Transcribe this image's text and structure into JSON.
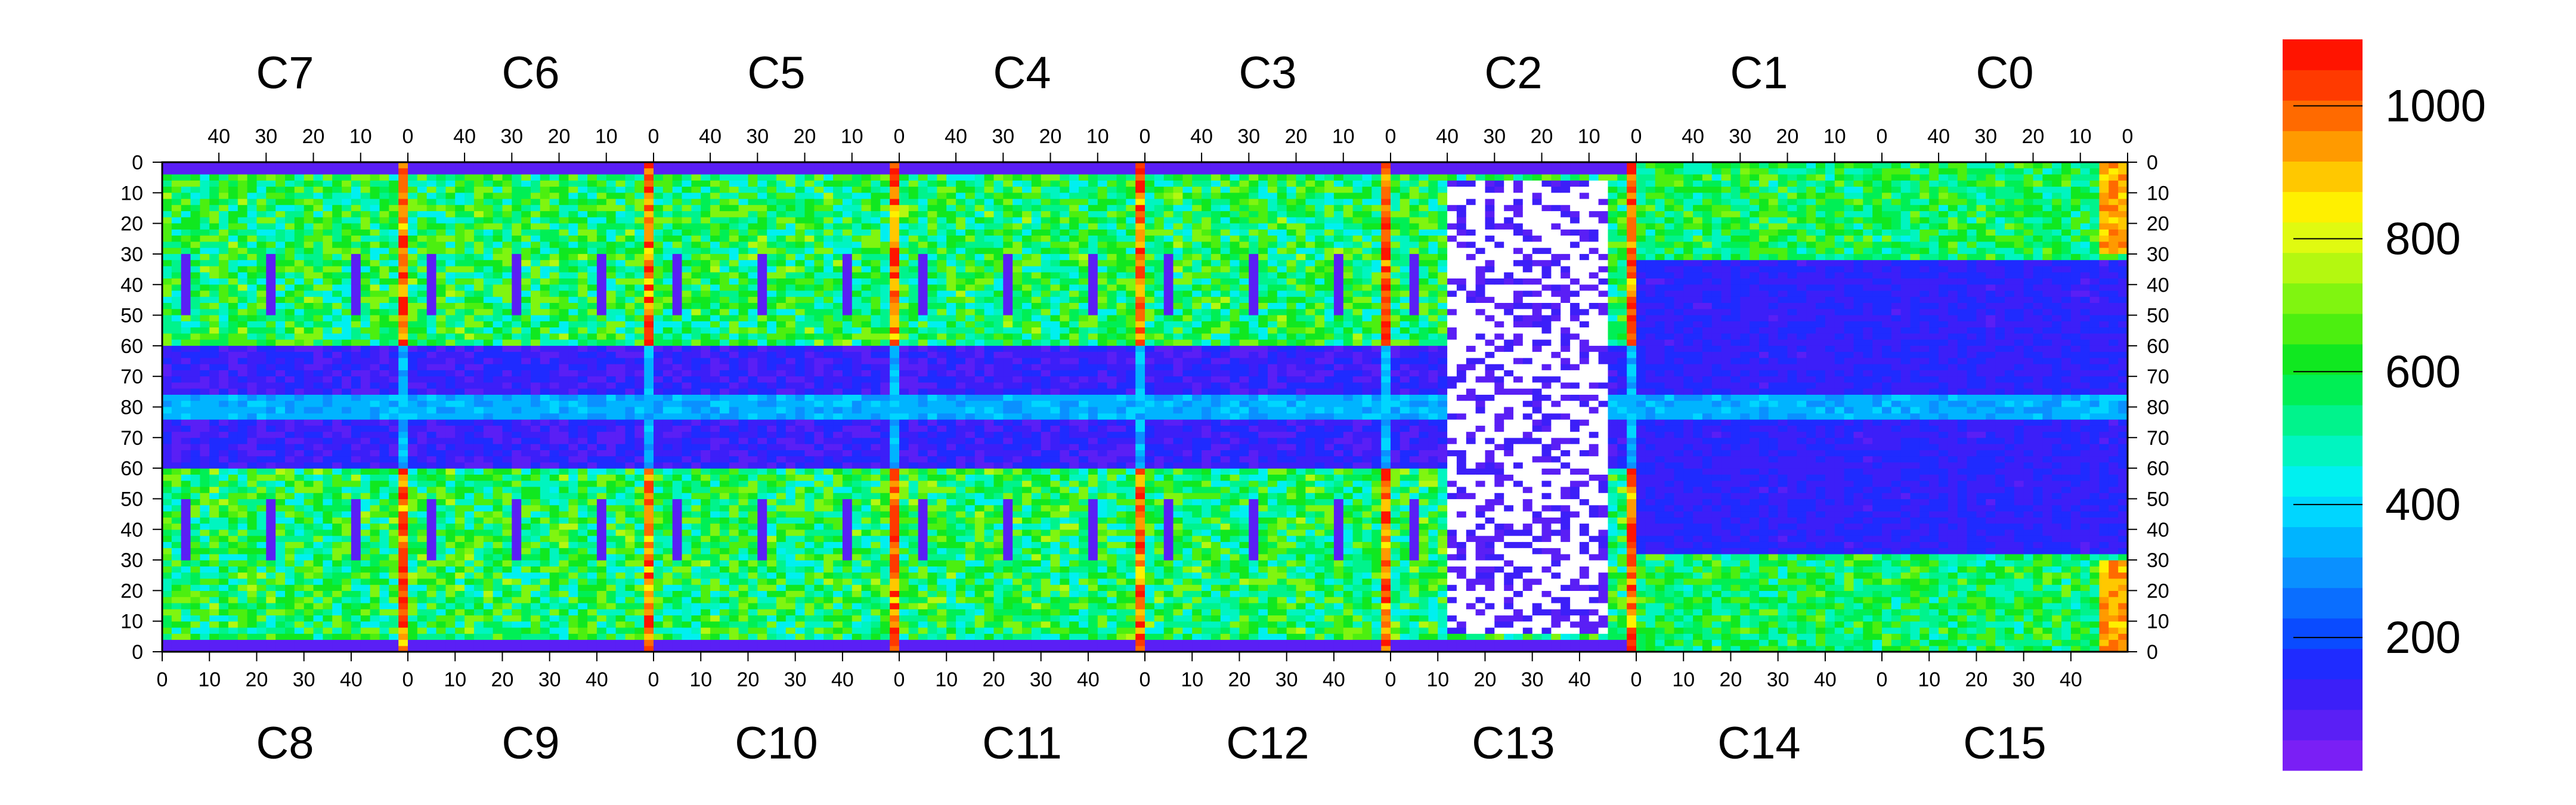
{
  "chart_data": {
    "type": "heatmap",
    "title": "",
    "xlabel": "",
    "ylabel": "",
    "top_chips": [
      "C7",
      "C6",
      "C5",
      "C4",
      "C3",
      "C2",
      "C1",
      "C0"
    ],
    "bottom_chips": [
      "C8",
      "C9",
      "C10",
      "C11",
      "C12",
      "C13",
      "C14",
      "C15"
    ],
    "top_column_ticks": [
      "40",
      "30",
      "20",
      "10",
      "0"
    ],
    "bottom_column_ticks": [
      "0",
      "10",
      "20",
      "30",
      "40"
    ],
    "y_ticks_left": [
      "0",
      "10",
      "20",
      "30",
      "40",
      "50",
      "60",
      "70",
      "80",
      "70",
      "60",
      "50",
      "40",
      "30",
      "20",
      "10",
      "0"
    ],
    "y_ticks_right": [
      "0",
      "10",
      "20",
      "30",
      "40",
      "50",
      "60",
      "70",
      "80",
      "70",
      "60",
      "50",
      "40",
      "30",
      "20",
      "10",
      "0"
    ],
    "columns_per_chip": 52,
    "rows_per_half": 80,
    "zlim": [
      0,
      1100
    ],
    "colorbar_ticks": [
      "200",
      "400",
      "600",
      "800",
      "1000"
    ],
    "colorbar_values": [
      200,
      400,
      600,
      800,
      1000
    ],
    "palette": [
      "#7a1ff5",
      "#5a1ff5",
      "#3c1ff8",
      "#1f2bff",
      "#0a4bff",
      "#0a6eff",
      "#0a90ff",
      "#00b4ff",
      "#00d6ff",
      "#00f0f0",
      "#00f5c0",
      "#00f38c",
      "#00ef55",
      "#10e820",
      "#4cef10",
      "#80f510",
      "#b4f810",
      "#e0fa10",
      "#fff000",
      "#ffc800",
      "#ff9a00",
      "#ff6a00",
      "#ff3a00",
      "#ff1400"
    ],
    "grid": false
  }
}
